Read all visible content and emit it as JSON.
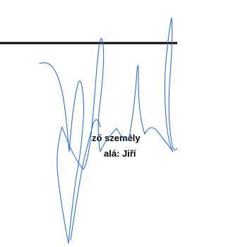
{
  "text_lines": [
    "ző személy",
    "alá: Jiří"
  ]
}
